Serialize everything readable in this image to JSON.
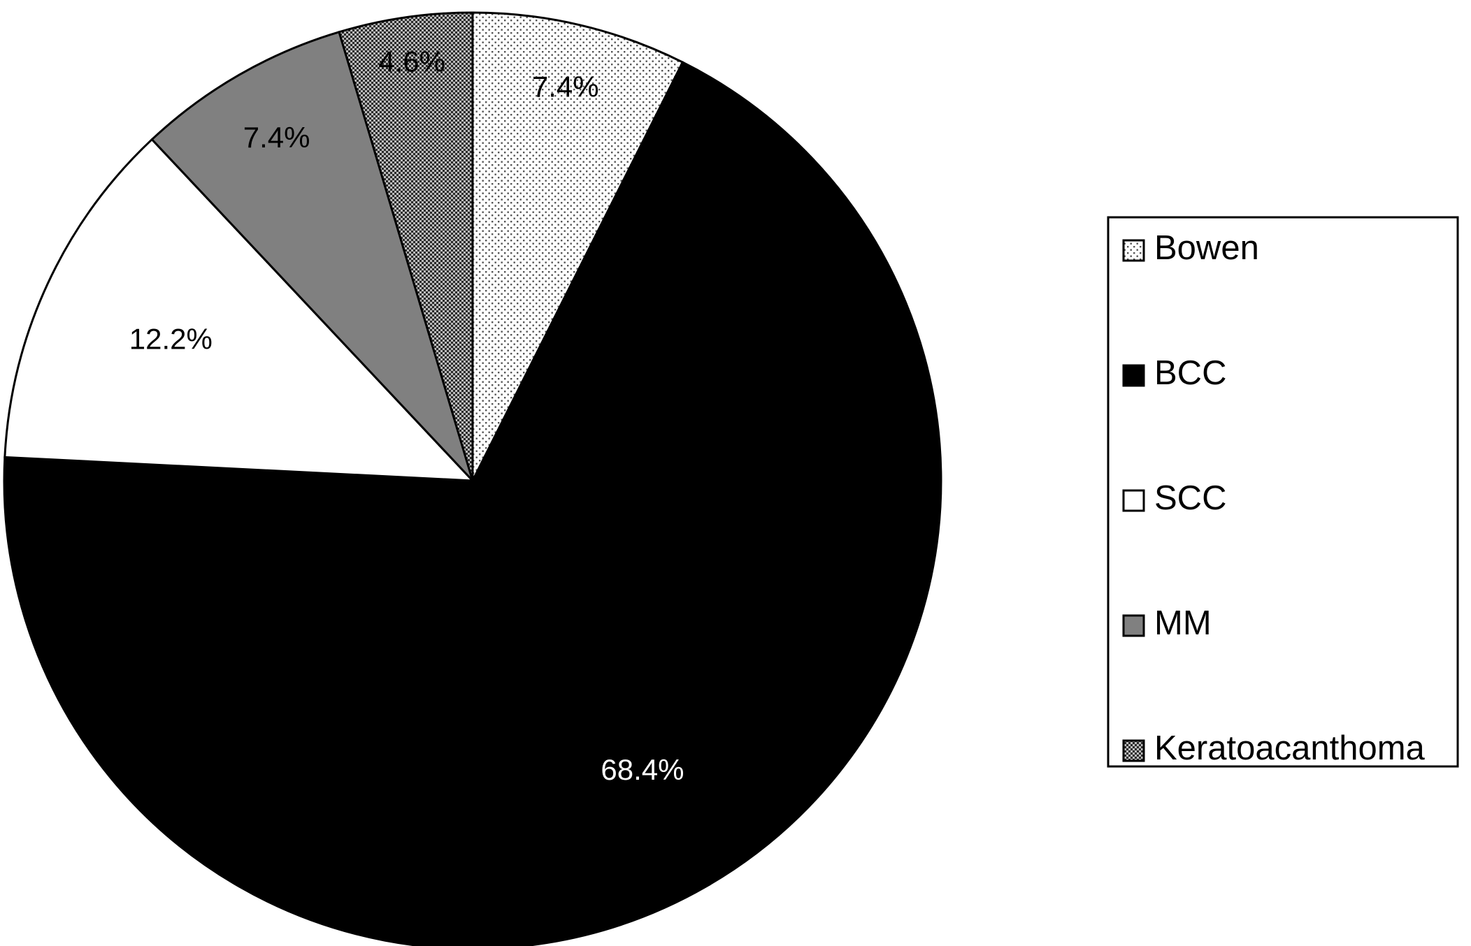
{
  "chart_data": {
    "type": "pie",
    "title": "",
    "categories": [
      "Bowen",
      "BCC",
      "SCC",
      "MM",
      "Keratoacanthoma"
    ],
    "values": [
      7.4,
      68.4,
      12.2,
      7.4,
      4.6
    ],
    "data_labels": [
      "7.4%",
      "68.4%",
      "12.2%",
      "7.4%",
      "4.6%"
    ],
    "start_angle": "12 o'clock",
    "direction": "clockwise",
    "legend_position": "right",
    "series": [
      {
        "name": "Bowen",
        "value": 7.4,
        "pattern": "sparse-dots",
        "label_color": "#000000"
      },
      {
        "name": "BCC",
        "value": 68.4,
        "pattern": "solid",
        "fill": "#000000",
        "label_color": "#ffffff"
      },
      {
        "name": "SCC",
        "value": 12.2,
        "pattern": "solid",
        "fill": "#ffffff",
        "label_color": "#000000"
      },
      {
        "name": "MM",
        "value": 7.4,
        "pattern": "solid",
        "fill": "#808080",
        "label_color": "#000000"
      },
      {
        "name": "Keratoacanthoma",
        "value": 4.6,
        "pattern": "dense-dots",
        "label_color": "#000000"
      }
    ]
  }
}
